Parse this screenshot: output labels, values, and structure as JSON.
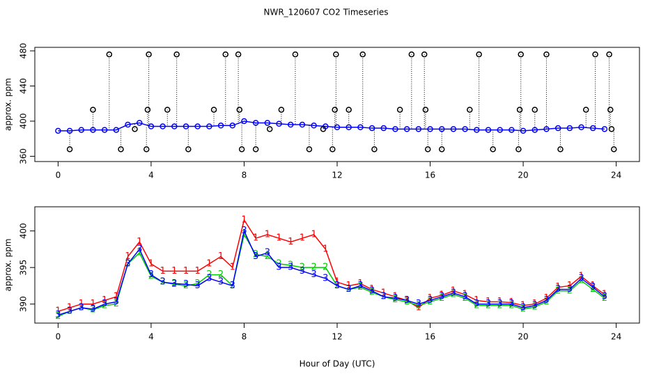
{
  "title": "NWR_120607  CO2 Timeseries",
  "chart_data": [
    {
      "type": "line",
      "ylabel": "approx. ppm",
      "xlim": [
        -1,
        25
      ],
      "xticks": [
        0,
        4,
        8,
        12,
        16,
        20,
        24
      ],
      "ylim": [
        354,
        484
      ],
      "yticks": [
        360,
        400,
        440,
        480
      ],
      "x": [
        0,
        0.5,
        1,
        1.5,
        2,
        2.5,
        3,
        3.5,
        4,
        4.5,
        5,
        5.5,
        6,
        6.5,
        7,
        7.5,
        8,
        8.5,
        9,
        9.5,
        10,
        10.5,
        11,
        11.5,
        12,
        12.5,
        13,
        13.5,
        14,
        14.5,
        15,
        15.5,
        16,
        16.5,
        17,
        17.5,
        18,
        18.5,
        19,
        19.5,
        20,
        20.5,
        21,
        21.5,
        22,
        22.5,
        23,
        23.5
      ],
      "series": [
        {
          "color": "#0000ff",
          "marker": "circle",
          "drop": false,
          "values": [
            389,
            389,
            390,
            390,
            390,
            390,
            396,
            398,
            394,
            394,
            394,
            394,
            394,
            394,
            395,
            395,
            400,
            398,
            398,
            397,
            396,
            396,
            395,
            394,
            393,
            393,
            393,
            392,
            392,
            391,
            391,
            391,
            391,
            391,
            391,
            391,
            390,
            390,
            390,
            390,
            389,
            390,
            391,
            392,
            392,
            393,
            392,
            391
          ]
        },
        {
          "color": "#000000",
          "marker": "circle",
          "drop": true,
          "x": [
            0.5,
            1.5,
            2.2,
            2.7,
            3.3,
            3.8,
            3.85,
            3.9,
            4.7,
            5.1,
            5.6,
            6.7,
            7.2,
            7.75,
            7.8,
            7.9,
            8.5,
            9.1,
            9.6,
            10.2,
            10.8,
            11.4,
            11.8,
            11.9,
            11.95,
            12.5,
            13.1,
            13.6,
            14.7,
            15.2,
            15.75,
            15.8,
            15.9,
            16.5,
            17.7,
            18.1,
            18.7,
            19.8,
            19.85,
            19.9,
            20.5,
            21.0,
            21.6,
            22.7,
            23.1,
            23.7,
            23.75,
            23.8,
            23.9
          ],
          "values": [
            368,
            413,
            476,
            368,
            391,
            368,
            413,
            476,
            413,
            476,
            368,
            413,
            476,
            476,
            413,
            368,
            368,
            391,
            413,
            476,
            368,
            391,
            368,
            413,
            476,
            413,
            476,
            368,
            413,
            476,
            476,
            413,
            368,
            368,
            413,
            476,
            368,
            368,
            413,
            476,
            413,
            476,
            368,
            413,
            476,
            476,
            413,
            391,
            368
          ]
        }
      ]
    },
    {
      "type": "line",
      "ylabel": "approx. ppm",
      "xlabel": "Hour of Day (UTC)",
      "xlim": [
        -1,
        25
      ],
      "xticks": [
        0,
        4,
        8,
        12,
        16,
        20,
        24
      ],
      "ylim": [
        387.4,
        403.3
      ],
      "yticks": [
        390,
        395,
        400
      ],
      "x": [
        0,
        0.5,
        1,
        1.5,
        2,
        2.5,
        3,
        3.5,
        4,
        4.5,
        5,
        5.5,
        6,
        6.5,
        7,
        7.5,
        8,
        8.5,
        9,
        9.5,
        10,
        10.5,
        11,
        11.5,
        12,
        12.5,
        13,
        13.5,
        14,
        14.5,
        15,
        15.5,
        16,
        16.5,
        17,
        17.5,
        18,
        18.5,
        19,
        19.5,
        20,
        20.5,
        21,
        21.5,
        22,
        22.5,
        23,
        23.5
      ],
      "series": [
        {
          "name": "1",
          "color": "#ff0000",
          "marker": "text",
          "values": [
            389,
            389.5,
            390,
            390,
            390.5,
            391,
            396.5,
            398.5,
            395.5,
            394.5,
            394.5,
            394.5,
            394.5,
            395.5,
            396.5,
            395,
            401.5,
            399,
            399.5,
            399,
            398.5,
            399,
            399.5,
            397.5,
            393,
            392.5,
            392.8,
            392,
            391.5,
            391,
            390.5,
            389.5,
            390.8,
            391.2,
            391.8,
            391.3,
            390.5,
            390.3,
            390.3,
            390.2,
            389.8,
            390,
            390.8,
            392.3,
            392.5,
            393.8,
            392.5,
            391.3
          ]
        },
        {
          "name": "2",
          "color": "#00cc00",
          "marker": "text",
          "values": [
            388.3,
            389,
            389.5,
            389.2,
            389.8,
            390,
            395.5,
            397,
            393.8,
            393,
            392.7,
            392.5,
            392.8,
            394,
            394,
            392.5,
            399.5,
            396.8,
            396.5,
            395.5,
            395.3,
            395,
            395,
            395,
            392.5,
            392,
            392.3,
            391.6,
            391,
            390.6,
            390.3,
            389.8,
            390.3,
            390.8,
            391.3,
            390.8,
            389.8,
            389.8,
            389.8,
            389.8,
            389.3,
            389.6,
            390.3,
            391.8,
            391.8,
            393.2,
            392,
            390.8
          ]
        },
        {
          "name": "3",
          "color": "#0000ff",
          "marker": "text",
          "values": [
            388.5,
            389,
            389.5,
            389.3,
            390,
            390.3,
            395.5,
            397.5,
            394,
            393,
            392.8,
            392.7,
            392.5,
            393.5,
            393,
            392.5,
            400,
            396.5,
            397,
            395,
            395,
            394.5,
            394,
            393.5,
            392.5,
            392,
            392.5,
            391.8,
            391,
            390.8,
            390.5,
            390,
            390.5,
            391,
            391.5,
            391,
            390,
            390,
            390,
            390,
            389.5,
            389.8,
            390.5,
            392,
            392,
            393.5,
            392.3,
            391
          ]
        }
      ]
    }
  ]
}
